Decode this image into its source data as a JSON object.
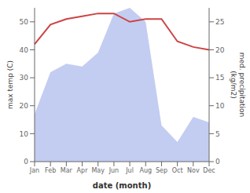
{
  "chart_data": {
    "type": "line",
    "categories": [
      "Jan",
      "Feb",
      "Mar",
      "Apr",
      "May",
      "Jun",
      "Jul",
      "Aug",
      "Sep",
      "Oct",
      "Nov",
      "Dec"
    ],
    "series": [
      {
        "type": "area",
        "color": "#b8c4ee",
        "values": [
          17,
          32,
          35,
          34,
          39,
          53,
          55,
          50,
          13,
          7,
          16,
          14
        ]
      },
      {
        "type": "line",
        "color": "#cc4444",
        "values": [
          42,
          49,
          51,
          52,
          53,
          53,
          50,
          51,
          51,
          43,
          41,
          40
        ]
      }
    ],
    "xlabel": "date (month)",
    "ylabel": "max temp (C)",
    "y2label": "med. precipitation\n(kg/m2)",
    "ylim": [
      0,
      55
    ],
    "yticks": [
      0,
      10,
      20,
      30,
      40,
      50
    ],
    "y2lim": [
      0,
      27.5
    ],
    "y2ticks": [
      0,
      5,
      10,
      15,
      20,
      25
    ],
    "grid": false
  }
}
